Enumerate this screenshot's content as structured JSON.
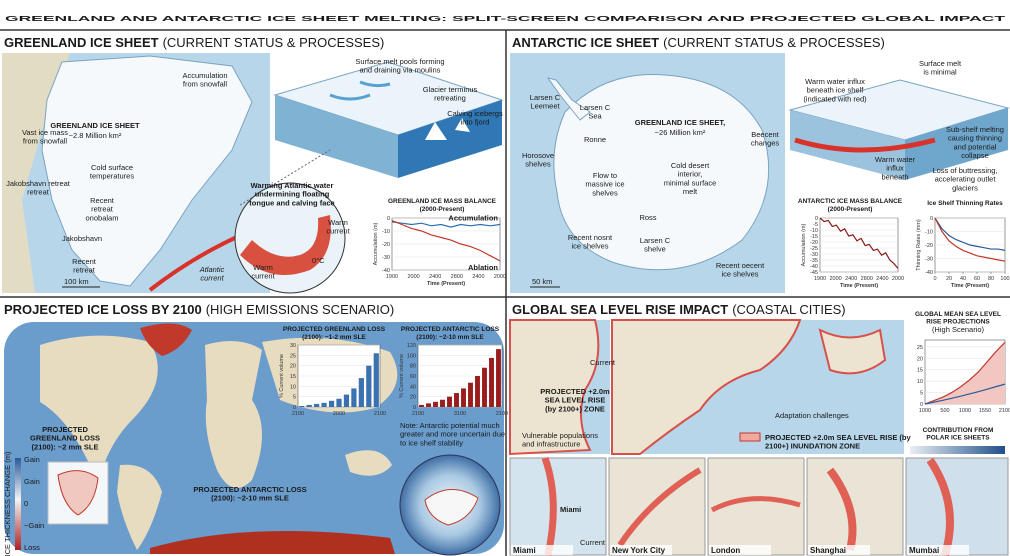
{
  "title": "GREENLAND AND ANTARCTIC ICE SHEET MELTING: SPLIT-SCREEN COMPARISON AND PROJECTED GLOBAL IMPACT",
  "greenland": {
    "heading": "GREENLAND ICE SHEET",
    "heading_note": "(CURRENT STATUS & PROCESSES)",
    "map_labels": {
      "sheet": "GREENLAND ICE SHEET",
      "area": "~2.8 Million km²",
      "accumulation": "Accumulation from snowfall",
      "vast": "Vast ice mass from snowfall",
      "cold": "Cold surface temperatures",
      "jakobshavn_retreat": "Jakobshavn retreat retreat",
      "recent_retreat": "Recent retreat onobalam",
      "jakobshavn": "Jakobshavn",
      "recent": "Recent retreat",
      "scale": "100 km",
      "current": "Atlantic current"
    },
    "diagram_labels": {
      "melt": "Surface melt pools forming and draining via moulins",
      "terminus": "Glacier terminus retreating",
      "calving": "Calving icebergs into fjord",
      "warming": "Warming Atlantic water undermining floating tongue and calving face",
      "warm1": "Warm current",
      "warm2": "Warm current",
      "temp": "0°C"
    },
    "mass_balance": {
      "type": "line",
      "title": "GREENLAND ICE MASS BALANCE",
      "subtitle": "(2000-Present)",
      "y_label": "Accumulation (m)",
      "x_label": "Time (Present)",
      "x_labels": [
        "1900",
        "2000",
        "2400",
        "2800",
        "2400",
        "2000"
      ],
      "ylim": [
        -40,
        0
      ],
      "yticks": [
        0,
        -10,
        -20,
        -30,
        -40
      ],
      "series": [
        {
          "name": "Accumulation",
          "color": "#2a6fb0",
          "values": [
            -3,
            -4,
            -5,
            -4,
            -6,
            -5,
            -7,
            -5,
            -6,
            -5,
            -6,
            -5
          ]
        },
        {
          "name": "Ablation",
          "color": "#c0392b",
          "values": [
            -2,
            -5,
            -8,
            -10,
            -13,
            -15,
            -17,
            -20,
            -22,
            -25,
            -29,
            -33
          ]
        }
      ]
    }
  },
  "antarctic": {
    "heading": "ANTARCTIC ICE SHEET",
    "heading_note": "(CURRENT STATUS & PROCESSES)",
    "map_labels": {
      "larsen_c": "Larsen C Leemeet",
      "larsen_sea": "Larsen C Sea",
      "ronne": "Ronne",
      "sheet": "GREENLAND ICE SHEET,",
      "area": "~26 Million km²",
      "beecent": "Beecent changes",
      "horosove": "Horosove shelves",
      "flow": "Flow to massive ice shelves",
      "cold": "Cold desert interior, minimal surface melt",
      "ross": "Ross",
      "recent_nosnt": "Recent nosnt ice shelves",
      "larsen_shelve": "Larsen C shelve",
      "recent_oecent": "Recent oecent ice shelves",
      "scale": "50 km"
    },
    "diagram_labels": {
      "surface": "Surface melt is minimal",
      "influx": "Warm water influx beneath ice shelf (indicated with red)",
      "sub_shelf": "Sub-shelf melting causing thinning and potential collapse",
      "warm": "Warm water influx beneath",
      "buttress": "Loss of buttressing, accelerating outlet glaciers"
    },
    "mass_balance": {
      "type": "line",
      "title": "ANTARCTIC ICE MASS BALANCE",
      "subtitle": "(2000-Present)",
      "y_label": "Accumulation (m)",
      "x_label": "Time (Present)",
      "x_labels": [
        "1900",
        "2000",
        "2400",
        "2800",
        "2400",
        "2000"
      ],
      "ylim": [
        -45,
        0
      ],
      "yticks": [
        0,
        -5,
        -10,
        -15,
        -20,
        -25,
        -30,
        -35,
        -40,
        -45
      ],
      "series": [
        {
          "color": "#8b1a1a",
          "values": [
            0,
            -3,
            -2,
            -7,
            -6,
            -11,
            -9,
            -15,
            -14,
            -19,
            -17,
            -23,
            -22,
            -27,
            -26,
            -31,
            -29,
            -35,
            -38,
            -42
          ]
        }
      ]
    },
    "thinning": {
      "type": "line",
      "title": "Ice Shelf Thinning Rates",
      "y_label": "Thinning Rates (mm)",
      "x_label": "Time (Present)",
      "xlim": [
        0,
        100
      ],
      "xticks": [
        0,
        20,
        40,
        60,
        80,
        100
      ],
      "x": [
        0,
        10,
        20,
        30,
        40,
        50,
        60,
        70,
        80,
        90,
        100
      ],
      "ylim": [
        -40,
        0
      ],
      "yticks": [
        0,
        -10,
        -20,
        -30,
        -40
      ],
      "series": [
        {
          "color": "#2a5a9a",
          "values": [
            0,
            -8,
            -13,
            -16,
            -18,
            -20,
            -21,
            -22,
            -23,
            -23,
            -24
          ]
        },
        {
          "color": "#c0392b",
          "values": [
            0,
            -10,
            -17,
            -21,
            -24,
            -26,
            -28,
            -29,
            -30,
            -31,
            -32
          ]
        }
      ]
    }
  },
  "projected": {
    "heading": "PROJECTED ICE LOSS BY 2100",
    "heading_note": "(HIGH EMISSIONS SCENARIO)",
    "greenland_loss": "PROJECTED GREENLAND LOSS (2100): ~2 mm SLE",
    "antarctic_loss": "PROJECTED ANTARCTIC LOSS (2100): ~2-10 mm SLE",
    "legend_title": "ICE THICKNESS CHANGE (m)",
    "legend_labels": [
      "Gain",
      "Gain",
      "0",
      "−Gain",
      "Loss"
    ],
    "greenland_bars": {
      "type": "bar",
      "title": "PROJECTED GREENLAND LOSS",
      "subtitle": "(2100): ~1-2 mm SLE",
      "y_label": "% Current volume",
      "x_labels": [
        "2100",
        "2000",
        "2100"
      ],
      "ylim": [
        0,
        30
      ],
      "yticks": [
        0,
        5,
        10,
        15,
        20,
        25,
        30
      ],
      "color": "#3a72b0",
      "values": [
        0.5,
        1,
        1.5,
        2,
        3,
        4,
        6,
        9,
        14,
        20,
        26
      ]
    },
    "antarctic_bars": {
      "type": "bar",
      "title": "PROJECTED ANTARCTIC LOSS",
      "subtitle": "(2100): ~2-10 mm SLE",
      "y_label": "% Current volume",
      "x_labels": [
        "2100",
        "3100",
        "2100"
      ],
      "ylim": [
        0,
        120
      ],
      "yticks": [
        0,
        20,
        40,
        60,
        80,
        100,
        120
      ],
      "color": "#9b1c1c",
      "values": [
        4,
        7,
        10,
        14,
        20,
        27,
        36,
        47,
        60,
        76,
        95,
        112
      ]
    },
    "note": "Note: Antarctic potential much greater and more uncertain due to ice shelf stability"
  },
  "sea_level": {
    "heading": "GLOBAL SEA LEVEL RISE IMPACT",
    "heading_note": "(COASTAL CITIES)",
    "current": "Current",
    "zone": "PROJECTED +2.0m SEA LEVEL RISE (by 2100+) ZONE",
    "vulnerable": "Vulnerable populations and infrastructure",
    "adaptation": "Adaptation challenges",
    "legend": "PROJECTED +2.0m SEA LEVEL RISE (by 2100+) INUNDATION ZONE",
    "contribution": "CONTRIBUTION FROM POLAR ICE SHEETS",
    "cities": [
      "Miami",
      "New York City",
      "London",
      "Shanghai",
      "Mumbai"
    ],
    "miami_inset": "Miami",
    "miami_current": "Current",
    "projection": {
      "type": "line",
      "title": "GLOBAL MEAN SEA LEVEL RISE PROJECTIONS",
      "subtitle": "(High Scenario)",
      "x_labels": [
        "1000",
        "500",
        "1000",
        "1550",
        "2100"
      ],
      "ylim": [
        0,
        28
      ],
      "yticks": [
        0,
        5,
        10,
        15,
        20,
        25
      ],
      "series": [
        {
          "color": "#c0392b",
          "fill": "#f2c7c2",
          "values": [
            0,
            1.5,
            3,
            5,
            7.5,
            10.5,
            14,
            18.5,
            23,
            27
          ]
        },
        {
          "color": "#2a5a9a",
          "values": [
            0,
            0.8,
            1.6,
            2.5,
            3.4,
            4.4,
            5.4,
            6.5,
            7.6,
            8.7
          ]
        }
      ]
    }
  }
}
